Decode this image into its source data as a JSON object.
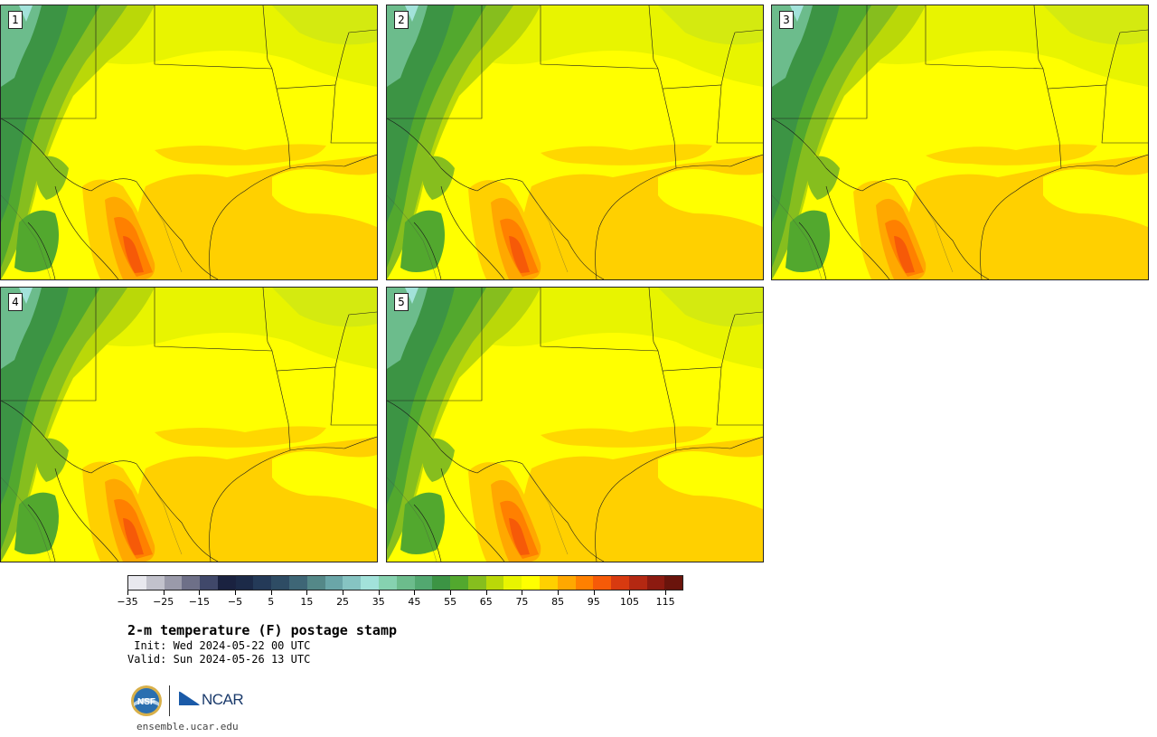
{
  "panels": [
    {
      "label": "1"
    },
    {
      "label": "2"
    },
    {
      "label": "3"
    },
    {
      "label": "4"
    },
    {
      "label": "5"
    }
  ],
  "colorbar": {
    "colors": [
      "#e8e8ee",
      "#c2c2cc",
      "#9a9aaa",
      "#6e7088",
      "#40486a",
      "#1a2240",
      "#1c2a48",
      "#243a58",
      "#2e4c64",
      "#3e6676",
      "#548888",
      "#6aa6a8",
      "#86c4c2",
      "#a2e2da",
      "#86d2b0",
      "#6cbc8c",
      "#52a870",
      "#3c9444",
      "#52a82e",
      "#86be1e",
      "#bad808",
      "#e8f400",
      "#ffff00",
      "#ffd000",
      "#ffa800",
      "#ff8000",
      "#f65a08",
      "#d83a10",
      "#b42812",
      "#8c1a10",
      "#6a140c"
    ],
    "tick_labels": [
      "−35",
      "−25",
      "−15",
      "−5",
      "5",
      "15",
      "25",
      "35",
      "45",
      "55",
      "65",
      "75",
      "85",
      "95",
      "105",
      "115"
    ]
  },
  "title": "2-m temperature (F) postage stamp",
  "init_line": " Init: Wed 2024-05-22 00 UTC",
  "valid_line": "Valid: Sun 2024-05-26 13 UTC",
  "logos": {
    "nsf": "NSF",
    "ncar": "NCAR"
  },
  "site": "ensemble.ucar.edu"
}
